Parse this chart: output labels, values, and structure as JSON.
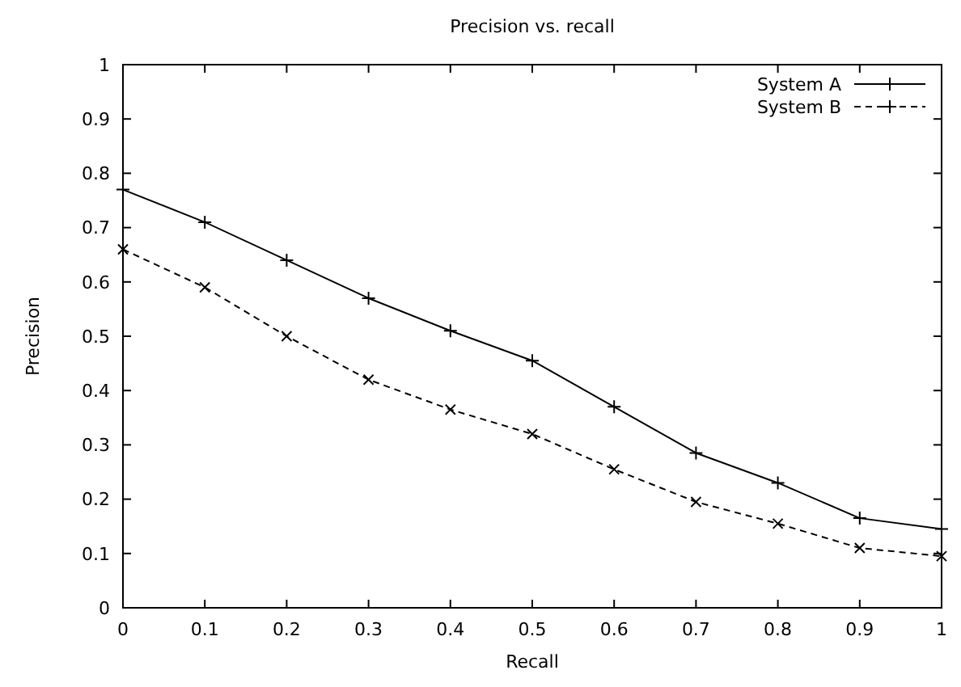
{
  "chart_data": {
    "type": "line",
    "title": "Precision vs. recall",
    "xlabel": "Recall",
    "ylabel": "Precision",
    "x": [
      0,
      0.1,
      0.2,
      0.3,
      0.4,
      0.5,
      0.6,
      0.7,
      0.8,
      0.9,
      1
    ],
    "series": [
      {
        "name": "System A",
        "color": "#000000",
        "marker": "cross",
        "line_style": "solid",
        "values": [
          0.77,
          0.71,
          0.64,
          0.57,
          0.51,
          0.455,
          0.37,
          0.285,
          0.23,
          0.165,
          0.145
        ]
      },
      {
        "name": "System B",
        "color": "#000000",
        "marker": "cross",
        "line_style": "dashed",
        "values": [
          0.66,
          0.59,
          0.5,
          0.42,
          0.365,
          0.32,
          0.255,
          0.195,
          0.155,
          0.11,
          0.095
        ]
      }
    ],
    "xlim": [
      0,
      1
    ],
    "ylim": [
      0,
      1
    ],
    "xticks": [
      0,
      0.1,
      0.2,
      0.3,
      0.4,
      0.5,
      0.6,
      0.7,
      0.8,
      0.9,
      1
    ],
    "yticks": [
      0,
      0.1,
      0.2,
      0.3,
      0.4,
      0.5,
      0.6,
      0.7,
      0.8,
      0.9,
      1
    ],
    "grid": false,
    "legend": "top right"
  }
}
